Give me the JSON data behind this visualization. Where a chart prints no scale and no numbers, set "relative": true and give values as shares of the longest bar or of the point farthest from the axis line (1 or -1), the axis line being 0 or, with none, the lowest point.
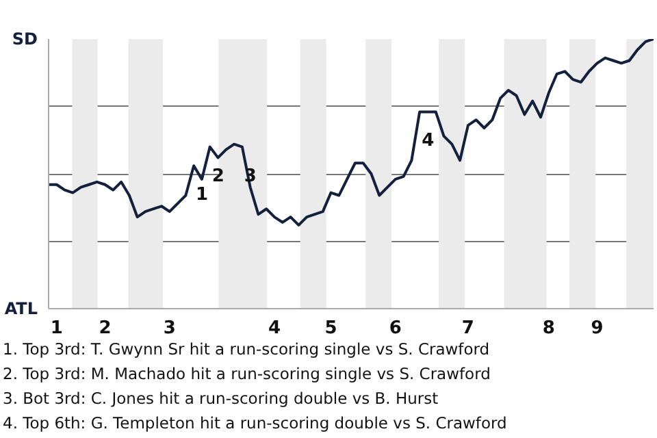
{
  "chart_data": {
    "type": "line",
    "relative": true,
    "categories": [
      null,
      "1",
      null,
      null,
      null,
      null,
      null,
      "2",
      null,
      null,
      null,
      null,
      null,
      null,
      null,
      "3",
      null,
      null,
      null,
      null,
      null,
      null,
      null,
      null,
      null,
      null,
      null,
      null,
      "4",
      null,
      null,
      null,
      null,
      null,
      null,
      "5",
      null,
      null,
      null,
      null,
      null,
      null,
      null,
      "6",
      null,
      null,
      null,
      null,
      null,
      null,
      null,
      null,
      "7",
      null,
      null,
      null,
      null,
      null,
      null,
      null,
      null,
      null,
      "8",
      null,
      null,
      null,
      null,
      null,
      "9",
      null,
      null,
      null,
      null,
      null,
      null,
      null
    ],
    "series": [
      {
        "color": "#14213d",
        "values": [
          0.46,
          0.46,
          0.44,
          0.43,
          0.45,
          0.46,
          0.47,
          0.46,
          0.44,
          0.47,
          0.42,
          0.34,
          0.36,
          0.37,
          0.38,
          0.36,
          0.39,
          0.42,
          0.53,
          0.48,
          0.6,
          0.56,
          0.59,
          0.61,
          0.6,
          0.45,
          0.35,
          0.37,
          0.34,
          0.32,
          0.34,
          0.31,
          0.34,
          0.35,
          0.36,
          0.43,
          0.42,
          0.48,
          0.54,
          0.54,
          0.5,
          0.42,
          0.45,
          0.48,
          0.49,
          0.55,
          0.73,
          0.73,
          0.73,
          0.64,
          0.61,
          0.55,
          0.68,
          0.7,
          0.67,
          0.7,
          0.78,
          0.81,
          0.79,
          0.72,
          0.77,
          0.71,
          0.8,
          0.87,
          0.88,
          0.85,
          0.84,
          0.88,
          0.91,
          0.93,
          0.92,
          0.91,
          0.92,
          0.96,
          0.99,
          1.0
        ]
      }
    ],
    "grid": "y",
    "annotations": [
      "SD",
      "ATL",
      {
        "text": "1",
        "y": 0.53
      },
      {
        "text": "2",
        "y": 0.6
      },
      {
        "text": "3",
        "y": 0.6
      },
      {
        "text": "4",
        "y": 0.73
      },
      "1. Top 3rd: T. Gwynn Sr hit a run-scoring single vs S. Crawford",
      "2. Top 3rd: M. Machado hit a run-scoring single vs S. Crawford",
      "3. Bot 3rd: C. Jones hit a run-scoring double vs B. Hurst",
      "4. Top 6th: G. Templeton hit a run-scoring double vs S. Crawford"
    ]
  }
}
